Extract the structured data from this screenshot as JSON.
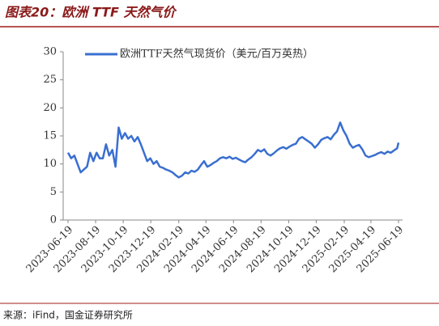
{
  "chart_data": {
    "type": "line",
    "title": "图表20：欧洲 TTF 天然气价",
    "x": [
      "2023-06-19",
      "2023-06-26",
      "2023-07-03",
      "2023-07-10",
      "2023-07-17",
      "2023-07-24",
      "2023-07-31",
      "2023-08-07",
      "2023-08-14",
      "2023-08-21",
      "2023-08-28",
      "2023-09-04",
      "2023-09-11",
      "2023-09-18",
      "2023-09-25",
      "2023-10-02",
      "2023-10-09",
      "2023-10-16",
      "2023-10-23",
      "2023-10-30",
      "2023-11-06",
      "2023-11-13",
      "2023-11-20",
      "2023-11-27",
      "2023-12-04",
      "2023-12-11",
      "2023-12-18",
      "2023-12-25",
      "2024-01-01",
      "2024-01-08",
      "2024-01-15",
      "2024-01-22",
      "2024-01-29",
      "2024-02-05",
      "2024-02-12",
      "2024-02-19",
      "2024-02-26",
      "2024-03-04",
      "2024-03-11",
      "2024-03-18",
      "2024-03-25",
      "2024-04-01",
      "2024-04-08",
      "2024-04-15",
      "2024-04-22",
      "2024-04-29",
      "2024-05-06",
      "2024-05-13",
      "2024-05-20",
      "2024-05-27",
      "2024-06-03",
      "2024-06-10",
      "2024-06-17",
      "2024-06-24",
      "2024-07-01",
      "2024-07-08",
      "2024-07-15",
      "2024-07-22",
      "2024-07-29",
      "2024-08-05",
      "2024-08-12",
      "2024-08-19",
      "2024-08-26",
      "2024-09-02",
      "2024-09-09",
      "2024-09-16",
      "2024-09-23",
      "2024-09-30",
      "2024-10-07",
      "2024-10-14",
      "2024-10-21",
      "2024-10-28",
      "2024-11-04",
      "2024-11-11",
      "2024-11-18",
      "2024-11-25",
      "2024-12-02",
      "2024-12-09",
      "2024-12-16",
      "2024-12-23",
      "2024-12-30",
      "2025-01-06",
      "2025-01-13",
      "2025-01-20",
      "2025-01-27",
      "2025-02-03",
      "2025-02-10",
      "2025-02-17",
      "2025-02-24",
      "2025-03-03",
      "2025-03-10",
      "2025-03-17",
      "2025-03-24",
      "2025-03-31",
      "2025-04-07",
      "2025-04-14",
      "2025-04-21",
      "2025-04-28",
      "2025-05-05",
      "2025-05-12",
      "2025-05-19",
      "2025-05-26",
      "2025-06-02",
      "2025-06-09",
      "2025-06-16",
      "2025-06-19"
    ],
    "series": [
      {
        "name": "欧洲TTF天然气现货价（美元/百万英热）",
        "color": "#3a6fd0",
        "values": [
          12,
          11,
          11.5,
          10,
          8.5,
          9,
          9.5,
          12,
          10.5,
          12,
          11,
          11,
          13.5,
          11.5,
          12.5,
          9.5,
          16.5,
          14.5,
          15.5,
          14.5,
          15,
          14,
          14.8,
          13.5,
          12,
          10.5,
          11,
          10,
          10.5,
          9.5,
          9.3,
          9,
          8.8,
          8.5,
          8,
          7.6,
          7.9,
          8.5,
          8.3,
          8.8,
          8.6,
          9,
          9.8,
          10.5,
          9.5,
          9.8,
          10.2,
          10.5,
          11,
          11.2,
          11,
          11.3,
          10.9,
          11.1,
          10.8,
          10.5,
          10.3,
          10.8,
          11.2,
          11.8,
          12.5,
          12.2,
          12.6,
          11.8,
          11.5,
          11.9,
          12.4,
          12.8,
          13,
          12.7,
          13.1,
          13.4,
          13.6,
          14.5,
          14.8,
          14.4,
          14,
          13.6,
          12.9,
          13.5,
          14.3,
          14.6,
          14.8,
          14.4,
          15.2,
          15.8,
          17.4,
          16,
          15,
          13.6,
          12.9,
          13.2,
          13.4,
          12.6,
          11.5,
          11.2,
          11.4,
          11.6,
          11.9,
          12.1,
          11.8,
          12.2,
          12,
          12.4,
          12.8,
          13.8
        ]
      }
    ],
    "xlim": [
      "2023-06-19",
      "2025-06-19"
    ],
    "xticks": [
      "2023-06-19",
      "2023-08-19",
      "2023-10-19",
      "2023-12-19",
      "2024-02-19",
      "2024-04-19",
      "2024-06-19",
      "2024-08-19",
      "2024-10-19",
      "2024-12-19",
      "2025-02-19",
      "2025-04-19",
      "2025-06-19"
    ],
    "ylim": [
      0,
      30
    ],
    "yticks": [
      0,
      5,
      10,
      15,
      20,
      25,
      30
    ],
    "grid": false,
    "legend": "top-left"
  },
  "source": "来源：iFind，国金证券研究所"
}
